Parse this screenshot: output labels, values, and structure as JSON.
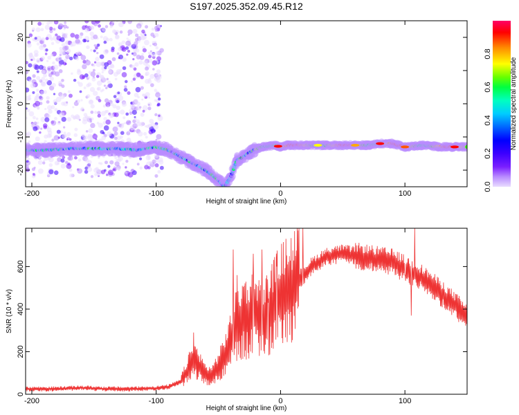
{
  "chart_data": [
    {
      "type": "heatmap",
      "title": "S197.2025.352.09.45.R12",
      "xlabel": "Height of straight line (km)",
      "ylabel": "Frequency (Hz)",
      "xlim": [
        -205,
        150
      ],
      "ylim": [
        -25,
        25
      ],
      "x_ticks": [
        -200,
        -100,
        0,
        100
      ],
      "y_ticks": [
        -20,
        -10,
        0,
        10,
        20
      ],
      "colorbar": {
        "label": "Normalized spectral amplitude",
        "range": [
          0,
          1
        ],
        "ticks": [
          0.0,
          0.2,
          0.4,
          0.6,
          0.8
        ],
        "colormap": [
          "#e9dcff",
          "#b98cff",
          "#7a1fff",
          "#3c00ff",
          "#0000ff",
          "#0055ff",
          "#00aaff",
          "#00ffe0",
          "#00ff66",
          "#33ff00",
          "#aaff00",
          "#ffff00",
          "#ffaa00",
          "#ff5500",
          "#ff0000",
          "#ff0066"
        ]
      },
      "ridge": [
        [
          -205,
          -14
        ],
        [
          -190,
          -14
        ],
        [
          -170,
          -13.5
        ],
        [
          -150,
          -13.5
        ],
        [
          -130,
          -13.5
        ],
        [
          -115,
          -14
        ],
        [
          -100,
          -13
        ],
        [
          -90,
          -14
        ],
        [
          -80,
          -16
        ],
        [
          -70,
          -18
        ],
        [
          -60,
          -20
        ],
        [
          -50,
          -23
        ],
        [
          -45,
          -25
        ],
        [
          -40,
          -22
        ],
        [
          -35,
          -17
        ],
        [
          -30,
          -16
        ],
        [
          -22,
          -14
        ],
        [
          -15,
          -13
        ],
        [
          -5,
          -12.5
        ],
        [
          0,
          -13
        ],
        [
          5,
          -12.5
        ],
        [
          15,
          -12.5
        ],
        [
          30,
          -12.5
        ],
        [
          50,
          -12.5
        ],
        [
          70,
          -12.5
        ],
        [
          80,
          -12
        ],
        [
          90,
          -12
        ],
        [
          100,
          -13
        ],
        [
          115,
          -12.5
        ],
        [
          130,
          -13
        ],
        [
          150,
          -13
        ]
      ],
      "scatter_region": {
        "x": [
          -205,
          -95
        ],
        "y": [
          -22,
          25
        ]
      }
    },
    {
      "type": "line",
      "xlabel": "Height of straight line (km)",
      "ylabel": "SNR (10 * v/v)",
      "xlim": [
        -205,
        150
      ],
      "ylim": [
        0,
        780
      ],
      "x_ticks": [
        -200,
        -100,
        0,
        100
      ],
      "y_ticks": [
        0,
        200,
        400,
        600
      ],
      "color": "#ee3333",
      "series": [
        {
          "values": [
            [
              -205,
              25
            ],
            [
              -180,
              25
            ],
            [
              -160,
              30
            ],
            [
              -140,
              25
            ],
            [
              -120,
              25
            ],
            [
              -100,
              28
            ],
            [
              -90,
              35
            ],
            [
              -80,
              60
            ],
            [
              -75,
              110
            ],
            [
              -70,
              170
            ],
            [
              -65,
              130
            ],
            [
              -60,
              90
            ],
            [
              -55,
              90
            ],
            [
              -50,
              130
            ],
            [
              -45,
              180
            ],
            [
              -40,
              250
            ],
            [
              -35,
              330
            ],
            [
              -30,
              360
            ],
            [
              -25,
              360
            ],
            [
              -20,
              390
            ],
            [
              -15,
              330
            ],
            [
              -10,
              380
            ],
            [
              -5,
              420
            ],
            [
              0,
              460
            ],
            [
              5,
              480
            ],
            [
              10,
              500
            ],
            [
              15,
              540
            ],
            [
              20,
              570
            ],
            [
              25,
              600
            ],
            [
              30,
              620
            ],
            [
              35,
              640
            ],
            [
              40,
              650
            ],
            [
              50,
              660
            ],
            [
              60,
              650
            ],
            [
              70,
              640
            ],
            [
              80,
              630
            ],
            [
              90,
              620
            ],
            [
              100,
              590
            ],
            [
              110,
              560
            ],
            [
              120,
              520
            ],
            [
              130,
              470
            ],
            [
              140,
              420
            ],
            [
              150,
              360
            ]
          ],
          "spikes": [
            [
              -70,
              290
            ],
            [
              -38,
              680
            ],
            [
              -35,
              560
            ],
            [
              -22,
              660
            ],
            [
              -15,
              680
            ],
            [
              -10,
              430
            ],
            [
              -3,
              600
            ],
            [
              18,
              780
            ],
            [
              100,
              560
            ],
            [
              105,
              370
            ],
            [
              108,
              780
            ]
          ]
        }
      ]
    }
  ]
}
